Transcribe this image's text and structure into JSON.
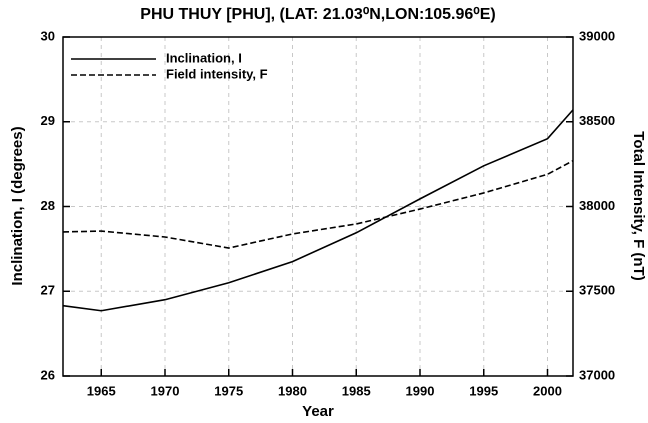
{
  "chart_data": {
    "type": "line",
    "title": "PHU THUY [PHU], (LAT: 21.03⁰N,LON:105.96⁰E)",
    "x_label": "Year",
    "y_label": "Inclination, I (degrees)",
    "y2_label": "Total Intensity, F (nT)",
    "x": [
      1962,
      1965,
      1970,
      1975,
      1980,
      1985,
      1990,
      1995,
      2000,
      2002
    ],
    "series": [
      {
        "name": "Inclination, I",
        "color": "#000000",
        "dash": "solid",
        "values": [
          26.83,
          26.77,
          26.9,
          27.1,
          27.35,
          27.69,
          28.09,
          28.48,
          28.8,
          29.14
        ]
      },
      {
        "name": "Field intensity, F",
        "color": "#000000",
        "dash": "dashed",
        "axis": "y2",
        "values": [
          37850,
          37855,
          37820,
          37755,
          37838,
          37897,
          37985,
          38080,
          38190,
          38270
        ]
      }
    ],
    "xlim": [
      1962,
      2002
    ],
    "xticks": [
      1965,
      1970,
      1975,
      1980,
      1985,
      1990,
      1995,
      2000
    ],
    "ylim": [
      26,
      30
    ],
    "yticks": [
      26,
      27,
      28,
      29,
      30
    ],
    "y2lim": [
      37000,
      39000
    ],
    "y2ticks": [
      37000,
      37500,
      38000,
      38500,
      39000
    ],
    "grid": true,
    "legend": "upper-left"
  }
}
